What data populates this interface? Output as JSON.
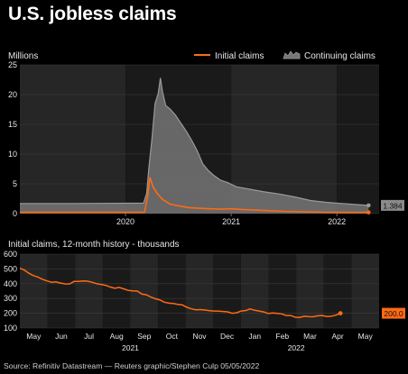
{
  "title": "U.S. jobless claims",
  "source": "Source: Refinitiv Datastream — Reuters graphic/Stephen Culp 05/05/2022",
  "colors": {
    "background": "#000000",
    "panel_dark": "#1a1a1a",
    "panel_light": "#262626",
    "initial": "#ff6a13",
    "continuing_fill": "#757575",
    "continuing_line": "#9a9a9a",
    "text": "#e6e6e6"
  },
  "chart_data": [
    {
      "type": "area",
      "unit_label": "Millions",
      "ylim": [
        0,
        25
      ],
      "yticks": [
        0,
        5,
        10,
        15,
        20,
        25
      ],
      "xlim": [
        2019.0,
        2022.4
      ],
      "xticks": [
        {
          "x": 2020,
          "label": "2020"
        },
        {
          "x": 2021,
          "label": "2021"
        },
        {
          "x": 2022,
          "label": "2022"
        }
      ],
      "legend_placement": "top-right",
      "grid": true,
      "end_label": "1.384",
      "series": [
        {
          "name": "Initial claims",
          "kind": "line",
          "points": [
            [
              2019.0,
              0.21
            ],
            [
              2019.5,
              0.21
            ],
            [
              2020.18,
              0.22
            ],
            [
              2020.21,
              2.9
            ],
            [
              2020.23,
              6.1
            ],
            [
              2020.26,
              4.5
            ],
            [
              2020.3,
              3.4
            ],
            [
              2020.35,
              2.4
            ],
            [
              2020.42,
              1.6
            ],
            [
              2020.5,
              1.3
            ],
            [
              2020.6,
              1.0
            ],
            [
              2020.75,
              0.85
            ],
            [
              2020.9,
              0.75
            ],
            [
              2021.0,
              0.8
            ],
            [
              2021.1,
              0.7
            ],
            [
              2021.3,
              0.55
            ],
            [
              2021.5,
              0.38
            ],
            [
              2021.7,
              0.3
            ],
            [
              2021.9,
              0.22
            ],
            [
              2022.1,
              0.2
            ],
            [
              2022.3,
              0.2
            ]
          ]
        },
        {
          "name": "Continuing claims",
          "kind": "area",
          "points": [
            [
              2019.0,
              1.7
            ],
            [
              2019.5,
              1.7
            ],
            [
              2020.17,
              1.75
            ],
            [
              2020.2,
              3.4
            ],
            [
              2020.22,
              7.5
            ],
            [
              2020.25,
              12.5
            ],
            [
              2020.28,
              18.5
            ],
            [
              2020.31,
              20.2
            ],
            [
              2020.33,
              22.8
            ],
            [
              2020.35,
              20.5
            ],
            [
              2020.38,
              18.2
            ],
            [
              2020.42,
              17.6
            ],
            [
              2020.47,
              16.6
            ],
            [
              2020.52,
              15.3
            ],
            [
              2020.58,
              13.7
            ],
            [
              2020.63,
              12.2
            ],
            [
              2020.68,
              10.5
            ],
            [
              2020.73,
              8.4
            ],
            [
              2020.78,
              7.3
            ],
            [
              2020.83,
              6.5
            ],
            [
              2020.9,
              5.6
            ],
            [
              2020.97,
              5.2
            ],
            [
              2021.05,
              4.5
            ],
            [
              2021.15,
              4.2
            ],
            [
              2021.3,
              3.7
            ],
            [
              2021.45,
              3.3
            ],
            [
              2021.6,
              2.8
            ],
            [
              2021.75,
              2.2
            ],
            [
              2021.9,
              1.9
            ],
            [
              2022.05,
              1.7
            ],
            [
              2022.2,
              1.5
            ],
            [
              2022.3,
              1.384
            ]
          ]
        }
      ]
    },
    {
      "type": "line",
      "title": "Initial claims, 12-month history - thousands",
      "ylim": [
        100,
        600
      ],
      "yticks": [
        100,
        200,
        300,
        400,
        500,
        600
      ],
      "months": [
        "May",
        "Jun",
        "Jul",
        "Aug",
        "Sep",
        "Oct",
        "Nov",
        "Dec",
        "Jan",
        "Feb",
        "Mar",
        "Apr",
        "May"
      ],
      "year_labels": [
        {
          "index": 3.5,
          "label": "2021"
        },
        {
          "index": 9.5,
          "label": "2022"
        }
      ],
      "end_label": "200.0",
      "series": [
        {
          "name": "Initial claims",
          "values": [
            505,
            492,
            471,
            455,
            445,
            430,
            419,
            410,
            412,
            404,
            399,
            398,
            415,
            416,
            418,
            417,
            410,
            400,
            395,
            389,
            378,
            369,
            375,
            365,
            355,
            351,
            350,
            330,
            325,
            310,
            298,
            290,
            275,
            268,
            266,
            260,
            256,
            240,
            230,
            224,
            225,
            222,
            217,
            215,
            214,
            212,
            210,
            200,
            203,
            215,
            218,
            229,
            220,
            215,
            209,
            198,
            202,
            199,
            196,
            185,
            185,
            173,
            172,
            180,
            177,
            176,
            183,
            185,
            178,
            180,
            187,
            200
          ]
        }
      ]
    }
  ]
}
